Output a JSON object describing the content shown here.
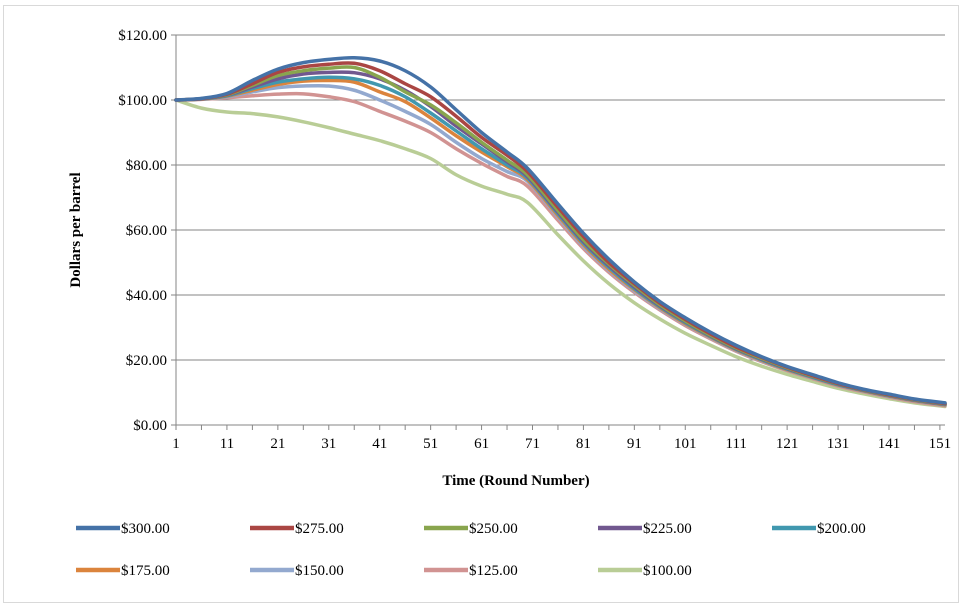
{
  "chart_data": {
    "type": "line",
    "xlabel": "Time (Round Number)",
    "ylabel": "Dollars per barrel",
    "xlim": [
      1,
      152
    ],
    "ylim": [
      0,
      120
    ],
    "x_ticks": [
      1,
      11,
      21,
      31,
      41,
      51,
      61,
      71,
      81,
      91,
      101,
      111,
      121,
      131,
      141,
      151
    ],
    "y_ticks": [
      0,
      20,
      40,
      60,
      80,
      100,
      120
    ],
    "y_tick_labels": [
      "$0.00",
      "$20.00",
      "$40.00",
      "$60.00",
      "$80.00",
      "$100.00",
      "$120.00"
    ],
    "grid": "horizontal",
    "legend_position": "bottom",
    "x": [
      1,
      6,
      11,
      16,
      21,
      26,
      31,
      36,
      41,
      46,
      51,
      56,
      61,
      66,
      70,
      76,
      81,
      86,
      91,
      96,
      101,
      106,
      111,
      116,
      121,
      126,
      131,
      136,
      141,
      146,
      152
    ],
    "series": [
      {
        "name": "$300.00",
        "color": "#4572A7",
        "values": [
          100,
          100.5,
          102,
          106,
          109.5,
          111.5,
          112.5,
          113,
          112,
          109,
          104,
          97,
          90,
          84,
          79,
          68,
          59,
          51,
          44,
          38,
          33,
          28.5,
          24.5,
          21,
          18,
          15.5,
          13,
          11,
          9.5,
          8,
          6.8
        ]
      },
      {
        "name": "$275.00",
        "color": "#AA4643",
        "values": [
          100,
          100.4,
          101.8,
          105,
          108.5,
          110.2,
          111,
          111.3,
          109,
          105,
          101,
          95,
          88.5,
          83,
          78,
          67,
          58,
          50,
          43.5,
          37.5,
          32.5,
          28,
          24,
          20.8,
          17.8,
          15.2,
          12.8,
          10.9,
          9.3,
          7.9,
          6.6
        ]
      },
      {
        "name": "$250.00",
        "color": "#89A54E",
        "values": [
          100,
          100.4,
          101.6,
          104.5,
          107.5,
          109,
          109.8,
          110,
          107,
          102.5,
          98.5,
          93,
          87,
          81.5,
          77,
          66,
          57,
          49.5,
          43,
          37,
          32,
          27.6,
          23.7,
          20.5,
          17.6,
          15,
          12.7,
          10.8,
          9.2,
          7.8,
          6.5
        ]
      },
      {
        "name": "$225.00",
        "color": "#71588F",
        "values": [
          100,
          100.4,
          101.5,
          104,
          106.5,
          108,
          108.5,
          108.4,
          106.5,
          103,
          98,
          92,
          86.5,
          81,
          76.5,
          65.5,
          56.5,
          49,
          42.5,
          36.7,
          31.8,
          27.4,
          23.5,
          20.3,
          17.4,
          14.9,
          12.6,
          10.7,
          9.1,
          7.7,
          6.4
        ]
      },
      {
        "name": "$200.00",
        "color": "#4198AF",
        "values": [
          100,
          100.3,
          101.3,
          103.5,
          105.5,
          106.5,
          107,
          106.5,
          104.5,
          101,
          96,
          90.5,
          85,
          80,
          76,
          65,
          56,
          48.5,
          42,
          36.4,
          31.5,
          27.2,
          23.3,
          20.1,
          17.2,
          14.7,
          12.4,
          10.6,
          9,
          7.6,
          6.3
        ]
      },
      {
        "name": "$175.00",
        "color": "#DB843D",
        "values": [
          100,
          100.3,
          101.2,
          103,
          104.8,
          105.8,
          106,
          105.5,
          102.5,
          99.5,
          94.5,
          89,
          84,
          79.5,
          75.5,
          64.5,
          55.5,
          48,
          41.7,
          36.1,
          31.2,
          27,
          23.1,
          19.9,
          17,
          14.6,
          12.3,
          10.5,
          8.9,
          7.5,
          6.2
        ]
      },
      {
        "name": "$150.00",
        "color": "#93A9CF",
        "values": [
          100,
          100.3,
          101,
          102.5,
          103.8,
          104.3,
          104.3,
          103,
          100,
          96.5,
          92.5,
          87,
          82,
          78,
          75,
          64,
          55,
          47.6,
          41.3,
          35.8,
          31,
          26.8,
          22.9,
          19.7,
          16.9,
          14.5,
          12.2,
          10.4,
          8.8,
          7.4,
          6.1
        ]
      },
      {
        "name": "$125.00",
        "color": "#D19392",
        "values": [
          100,
          100.2,
          100.7,
          101.3,
          101.8,
          101.9,
          101,
          99.5,
          96.5,
          93.5,
          90,
          85,
          80.5,
          76.5,
          73.5,
          63,
          54.3,
          47,
          40.8,
          35.4,
          30.6,
          26.5,
          22.7,
          19.5,
          16.7,
          14.3,
          12,
          10.2,
          8.6,
          7.2,
          5.9
        ]
      },
      {
        "name": "$100.00",
        "color": "#B9CD96",
        "values": [
          100,
          97.5,
          96.3,
          95.8,
          94.8,
          93.3,
          91.5,
          89.5,
          87.5,
          85,
          82,
          77,
          73.5,
          71,
          68.5,
          58.5,
          50.5,
          43.5,
          37.6,
          32.6,
          28.2,
          24.5,
          21,
          18.1,
          15.6,
          13.4,
          11.3,
          9.6,
          8.1,
          6.8,
          5.7
        ]
      }
    ]
  }
}
